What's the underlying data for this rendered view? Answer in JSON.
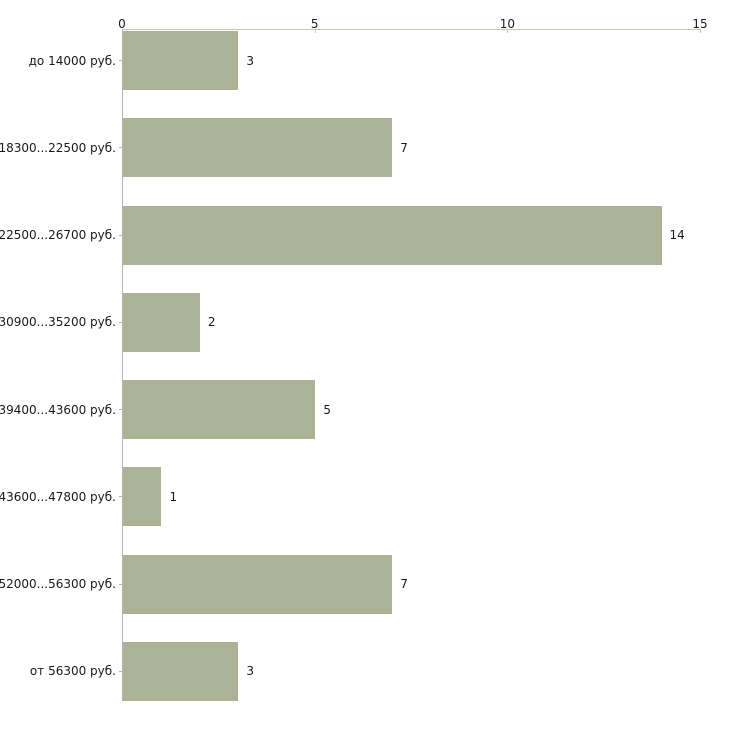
{
  "chart_data": {
    "type": "bar",
    "orientation": "horizontal",
    "title": "",
    "xlabel": "",
    "ylabel": "",
    "categories": [
      "до 14000 руб.",
      "18300...22500 руб.",
      "22500...26700 руб.",
      "30900...35200 руб.",
      "39400...43600 руб.",
      "43600...47800 руб.",
      "52000...56300 руб.",
      "от 56300 руб."
    ],
    "values": [
      3,
      7,
      14,
      2,
      5,
      1,
      7,
      3
    ],
    "value_labels_shown": true,
    "axis": {
      "position": "top",
      "ticks": [
        0,
        5,
        10,
        15
      ],
      "min": 0,
      "max": 15
    },
    "grid": false,
    "legend": false,
    "colors": {
      "bar_fill": "#abb296",
      "axis_line": "#c6c9ae",
      "category_axis_line": "#b4b4b4",
      "category_tick": "#b4b4b4",
      "text": "#1a1a1a",
      "background": "#ffffff"
    }
  }
}
